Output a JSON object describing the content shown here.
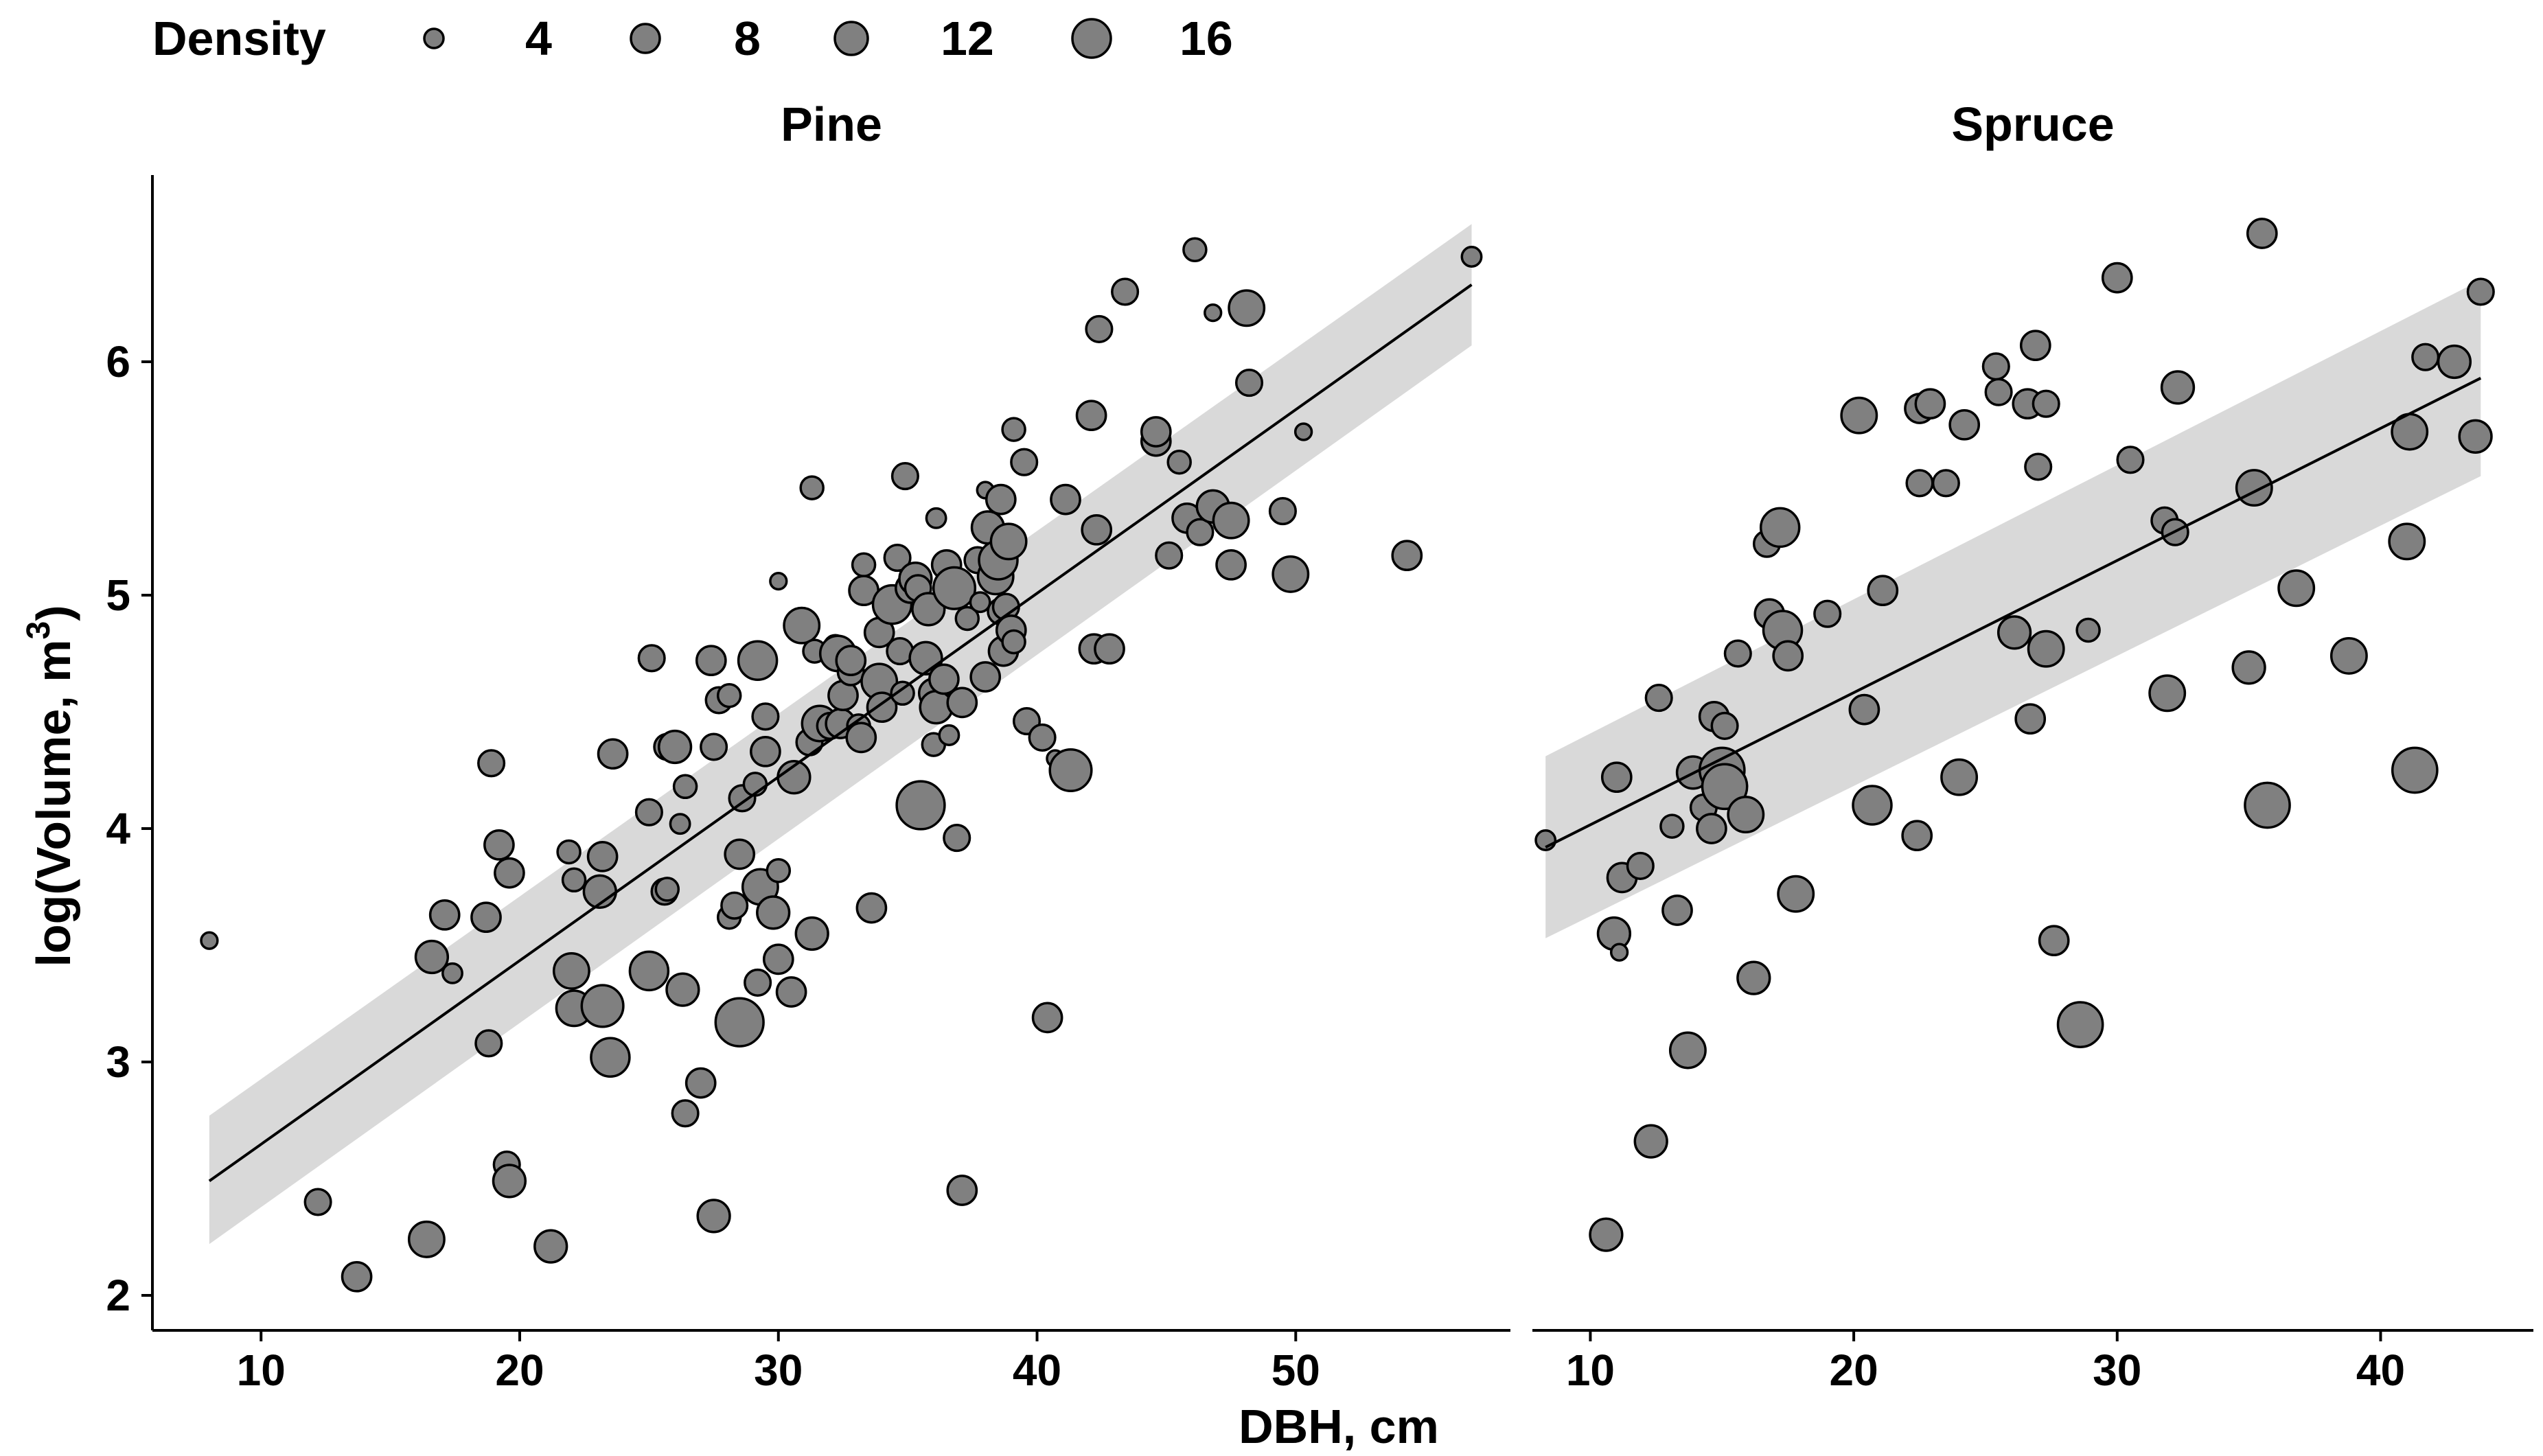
{
  "chart_data": {
    "type": "scatter",
    "x_label": "DBH, cm",
    "y_label_main": "log(Volume, m",
    "y_label_sup": "3",
    "y_label_end": ")",
    "size_legend": {
      "title": "Density",
      "values": [
        4,
        8,
        12,
        16
      ]
    },
    "panels": [
      {
        "name": "Pine",
        "xlim": [
          5.8,
          58.3
        ],
        "ylim": [
          1.85,
          6.8
        ],
        "x_ticks": [
          10,
          20,
          30,
          40,
          50
        ],
        "y_ticks": [
          2,
          3,
          4,
          5,
          6
        ],
        "fit": {
          "x0": 8.0,
          "x1": 56.8,
          "y0": 2.49,
          "y1": 6.33,
          "ci_lo0": 2.22,
          "ci_hi0": 2.77,
          "ci_lo1": 6.07,
          "ci_hi1": 6.59
        },
        "points": [
          [
            8.0,
            3.52,
            3
          ],
          [
            12.2,
            2.4,
            6
          ],
          [
            13.7,
            2.08,
            7
          ],
          [
            16.4,
            2.24,
            9
          ],
          [
            16.6,
            3.45,
            8
          ],
          [
            17.1,
            3.63,
            7
          ],
          [
            17.4,
            3.38,
            4
          ],
          [
            18.7,
            3.62,
            7
          ],
          [
            18.8,
            3.08,
            6
          ],
          [
            18.9,
            4.28,
            6
          ],
          [
            19.2,
            3.93,
            7
          ],
          [
            19.6,
            3.81,
            7
          ],
          [
            19.5,
            2.56,
            6
          ],
          [
            19.6,
            2.49,
            8
          ],
          [
            21.2,
            2.21,
            8
          ],
          [
            21.9,
            3.9,
            5
          ],
          [
            22.1,
            3.78,
            5
          ],
          [
            22.0,
            3.39,
            9
          ],
          [
            22.1,
            3.23,
            9
          ],
          [
            23.2,
            3.88,
            7
          ],
          [
            23.1,
            3.73,
            8
          ],
          [
            23.2,
            3.24,
            11
          ],
          [
            23.6,
            4.32,
            7
          ],
          [
            23.5,
            3.02,
            10
          ],
          [
            25.0,
            4.07,
            6
          ],
          [
            25.1,
            4.73,
            6
          ],
          [
            25.0,
            3.39,
            10
          ],
          [
            25.6,
            3.73,
            6
          ],
          [
            25.7,
            3.74,
            5
          ],
          [
            25.7,
            4.35,
            6
          ],
          [
            26.0,
            4.35,
            8
          ],
          [
            26.2,
            4.02,
            4
          ],
          [
            26.3,
            3.31,
            8
          ],
          [
            26.4,
            4.18,
            5
          ],
          [
            26.4,
            2.78,
            6
          ],
          [
            27.0,
            2.91,
            7
          ],
          [
            27.4,
            4.72,
            7
          ],
          [
            27.5,
            4.35,
            6
          ],
          [
            27.5,
            2.34,
            8
          ],
          [
            27.7,
            4.55,
            6
          ],
          [
            28.1,
            3.62,
            5
          ],
          [
            28.1,
            4.57,
            5
          ],
          [
            28.3,
            3.67,
            6
          ],
          [
            28.5,
            3.89,
            7
          ],
          [
            28.5,
            3.17,
            13
          ],
          [
            28.6,
            4.13,
            6
          ],
          [
            29.1,
            4.19,
            5
          ],
          [
            29.2,
            3.34,
            6
          ],
          [
            29.2,
            4.72,
            10
          ],
          [
            29.3,
            3.75,
            9
          ],
          [
            29.5,
            4.48,
            6
          ],
          [
            29.5,
            4.33,
            7
          ],
          [
            29.8,
            3.64,
            8
          ],
          [
            30.0,
            3.44,
            7
          ],
          [
            30.0,
            3.82,
            5
          ],
          [
            30.0,
            5.06,
            3
          ],
          [
            30.5,
            3.3,
            7
          ],
          [
            30.6,
            4.22,
            8
          ],
          [
            30.9,
            4.87,
            9
          ],
          [
            31.2,
            4.37,
            6
          ],
          [
            31.3,
            3.55,
            8
          ],
          [
            31.3,
            5.46,
            5
          ],
          [
            31.4,
            4.76,
            5
          ],
          [
            31.6,
            4.45,
            9
          ],
          [
            32.0,
            4.44,
            6
          ],
          [
            32.2,
            4.78,
            5
          ],
          [
            32.3,
            4.75,
            9
          ],
          [
            32.4,
            4.45,
            7
          ],
          [
            32.5,
            4.57,
            7
          ],
          [
            32.8,
            4.67,
            6
          ],
          [
            32.8,
            4.72,
            7
          ],
          [
            33.1,
            4.44,
            5
          ],
          [
            33.2,
            4.39,
            7
          ],
          [
            33.3,
            5.13,
            5
          ],
          [
            33.3,
            5.02,
            7
          ],
          [
            33.6,
            3.66,
            7
          ],
          [
            33.9,
            4.84,
            7
          ],
          [
            33.9,
            4.63,
            9
          ],
          [
            34.0,
            4.52,
            7
          ],
          [
            34.4,
            4.96,
            10
          ],
          [
            34.6,
            5.16,
            6
          ],
          [
            34.7,
            4.76,
            6
          ],
          [
            34.8,
            4.58,
            5
          ],
          [
            34.9,
            5.51,
            6
          ],
          [
            35.1,
            5.03,
            7
          ],
          [
            35.3,
            5.07,
            8
          ],
          [
            35.4,
            5.03,
            6
          ],
          [
            35.5,
            4.1,
            13
          ],
          [
            35.7,
            4.73,
            8
          ],
          [
            35.8,
            4.94,
            8
          ],
          [
            36.0,
            4.36,
            5
          ],
          [
            36.0,
            4.58,
            7
          ],
          [
            36.1,
            5.33,
            4
          ],
          [
            36.1,
            4.52,
            8
          ],
          [
            36.4,
            4.64,
            7
          ],
          [
            36.5,
            5.13,
            7
          ],
          [
            36.6,
            4.4,
            4
          ],
          [
            36.8,
            5.03,
            11
          ],
          [
            36.9,
            3.96,
            6
          ],
          [
            37.1,
            4.54,
            7
          ],
          [
            37.1,
            2.45,
            7
          ],
          [
            37.3,
            4.9,
            5
          ],
          [
            37.7,
            5.15,
            6
          ],
          [
            37.8,
            4.97,
            4
          ],
          [
            38.0,
            4.65,
            7
          ],
          [
            38.0,
            5.45,
            3
          ],
          [
            38.1,
            5.29,
            8
          ],
          [
            38.4,
            5.08,
            9
          ],
          [
            38.5,
            5.15,
            10
          ],
          [
            38.6,
            5.41,
            7
          ],
          [
            38.6,
            4.93,
            6
          ],
          [
            38.7,
            4.76,
            7
          ],
          [
            38.8,
            4.95,
            6
          ],
          [
            38.9,
            5.23,
            9
          ],
          [
            39.0,
            4.85,
            7
          ],
          [
            39.1,
            5.71,
            5
          ],
          [
            39.1,
            4.8,
            5
          ],
          [
            39.5,
            5.57,
            6
          ],
          [
            39.6,
            4.46,
            6
          ],
          [
            40.2,
            4.39,
            6
          ],
          [
            40.4,
            3.19,
            7
          ],
          [
            40.7,
            4.3,
            3
          ],
          [
            41.1,
            5.41,
            7
          ],
          [
            41.3,
            4.25,
            11
          ],
          [
            42.1,
            5.77,
            7
          ],
          [
            42.2,
            4.77,
            7
          ],
          [
            42.3,
            5.28,
            7
          ],
          [
            42.4,
            6.14,
            6
          ],
          [
            42.8,
            4.77,
            7
          ],
          [
            43.4,
            6.3,
            6
          ],
          [
            44.6,
            5.66,
            7
          ],
          [
            44.6,
            5.7,
            7
          ],
          [
            45.1,
            5.17,
            6
          ],
          [
            45.5,
            5.57,
            5
          ],
          [
            45.8,
            5.33,
            7
          ],
          [
            46.1,
            6.48,
            5
          ],
          [
            46.3,
            5.27,
            6
          ],
          [
            46.8,
            6.21,
            3
          ],
          [
            46.8,
            5.38,
            8
          ],
          [
            47.5,
            5.13,
            7
          ],
          [
            47.5,
            5.32,
            9
          ],
          [
            48.1,
            6.23,
            9
          ],
          [
            48.2,
            5.91,
            6
          ],
          [
            49.5,
            5.36,
            6
          ],
          [
            49.8,
            5.09,
            9
          ],
          [
            50.3,
            5.7,
            3
          ],
          [
            54.3,
            5.17,
            7
          ],
          [
            56.8,
            6.45,
            4
          ]
        ]
      },
      {
        "name": "Spruce",
        "xlim": [
          7.8,
          45.8
        ],
        "ylim": [
          1.85,
          6.8
        ],
        "x_ticks": [
          10,
          20,
          30,
          40
        ],
        "y_ticks": [
          2,
          3,
          4,
          5,
          6
        ],
        "fit": {
          "x0": 8.3,
          "x1": 43.8,
          "y0": 3.92,
          "y1": 5.93,
          "ci_lo0": 3.53,
          "ci_hi0": 4.31,
          "ci_lo1": 5.51,
          "ci_hi1": 6.35
        },
        "points": [
          [
            8.3,
            3.95,
            4
          ],
          [
            10.6,
            2.26,
            8
          ],
          [
            10.9,
            3.55,
            8
          ],
          [
            11.0,
            4.22,
            7
          ],
          [
            11.1,
            3.47,
            3
          ],
          [
            11.2,
            3.79,
            7
          ],
          [
            11.9,
            3.84,
            6
          ],
          [
            12.3,
            2.66,
            8
          ],
          [
            12.6,
            4.56,
            6
          ],
          [
            13.1,
            4.01,
            5
          ],
          [
            13.3,
            3.65,
            7
          ],
          [
            13.7,
            3.05,
            9
          ],
          [
            13.9,
            4.24,
            8
          ],
          [
            14.3,
            4.09,
            6
          ],
          [
            14.6,
            4.0,
            7
          ],
          [
            14.7,
            4.48,
            7
          ],
          [
            15.0,
            4.25,
            12
          ],
          [
            15.1,
            4.18,
            12
          ],
          [
            15.1,
            4.44,
            6
          ],
          [
            15.6,
            4.75,
            6
          ],
          [
            15.9,
            4.06,
            9
          ],
          [
            16.2,
            3.36,
            8
          ],
          [
            16.7,
            5.22,
            6
          ],
          [
            16.8,
            4.92,
            7
          ],
          [
            17.2,
            5.29,
            10
          ],
          [
            17.3,
            4.85,
            10
          ],
          [
            17.5,
            4.74,
            7
          ],
          [
            17.8,
            3.72,
            9
          ],
          [
            19.0,
            4.92,
            6
          ],
          [
            20.2,
            5.77,
            9
          ],
          [
            20.4,
            4.51,
            7
          ],
          [
            20.7,
            4.1,
            10
          ],
          [
            21.1,
            5.02,
            7
          ],
          [
            22.4,
            3.97,
            7
          ],
          [
            22.5,
            5.48,
            6
          ],
          [
            22.5,
            5.8,
            7
          ],
          [
            22.9,
            5.82,
            7
          ],
          [
            23.5,
            5.48,
            6
          ],
          [
            24.0,
            4.22,
            9
          ],
          [
            24.2,
            5.73,
            7
          ],
          [
            25.4,
            5.98,
            6
          ],
          [
            25.5,
            5.87,
            6
          ],
          [
            26.1,
            4.84,
            8
          ],
          [
            26.6,
            5.82,
            7
          ],
          [
            26.7,
            4.47,
            7
          ],
          [
            26.9,
            6.07,
            7
          ],
          [
            27.0,
            5.55,
            6
          ],
          [
            27.3,
            4.77,
            9
          ],
          [
            27.3,
            5.82,
            6
          ],
          [
            27.6,
            3.52,
            7
          ],
          [
            28.6,
            3.16,
            12
          ],
          [
            28.9,
            4.85,
            5
          ],
          [
            30.0,
            6.36,
            7
          ],
          [
            30.5,
            5.58,
            6
          ],
          [
            31.8,
            5.32,
            6
          ],
          [
            31.9,
            4.58,
            9
          ],
          [
            32.2,
            5.27,
            6
          ],
          [
            32.3,
            5.89,
            8
          ],
          [
            35.0,
            4.69,
            8
          ],
          [
            35.2,
            5.46,
            9
          ],
          [
            35.5,
            6.55,
            7
          ],
          [
            35.7,
            4.1,
            12
          ],
          [
            36.8,
            5.03,
            9
          ],
          [
            38.8,
            4.74,
            9
          ],
          [
            41.0,
            5.23,
            9
          ],
          [
            41.1,
            5.7,
            9
          ],
          [
            41.3,
            4.25,
            12
          ],
          [
            41.7,
            6.02,
            6
          ],
          [
            42.8,
            6.0,
            8
          ],
          [
            43.6,
            5.68,
            8
          ],
          [
            43.8,
            6.3,
            6
          ]
        ]
      }
    ]
  }
}
